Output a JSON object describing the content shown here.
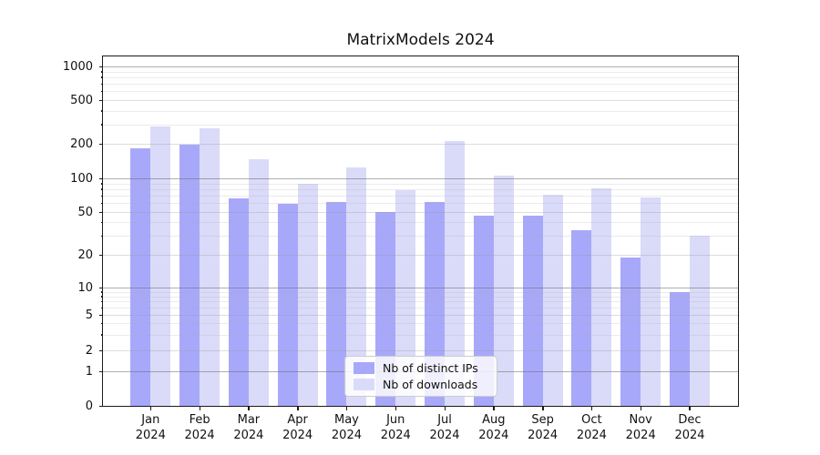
{
  "title": "MatrixModels 2024",
  "colors": {
    "distinct_ips": "#a8a8fa",
    "downloads": "#dadaf9",
    "grid_major": "rgba(110,110,110,0.55)",
    "grid_labeled": "rgba(150,150,150,0.32)",
    "grid_minor": "rgba(170,170,170,0.24)",
    "axis": "#1a1a1a"
  },
  "chart_data": {
    "type": "bar",
    "title": "MatrixModels 2024",
    "categories": [
      "Jan",
      "Feb",
      "Mar",
      "Apr",
      "May",
      "Jun",
      "Jul",
      "Aug",
      "Sep",
      "Oct",
      "Nov",
      "Dec"
    ],
    "year_label": "2024",
    "series": [
      {
        "name": "Nb of distinct IPs",
        "color_key": "distinct_ips",
        "values": [
          182,
          195,
          66,
          59,
          61,
          50,
          62,
          46,
          46,
          34,
          19,
          9
        ]
      },
      {
        "name": "Nb of downloads",
        "color_key": "downloads",
        "values": [
          285,
          275,
          146,
          90,
          124,
          78,
          210,
          106,
          71,
          82,
          67,
          30
        ]
      }
    ],
    "yticks": [
      0,
      1,
      2,
      5,
      10,
      20,
      50,
      100,
      200,
      500,
      1000
    ],
    "yscale": "symlog",
    "ylim": [
      0,
      1200
    ],
    "grid": true,
    "legend_position": "lower center"
  }
}
